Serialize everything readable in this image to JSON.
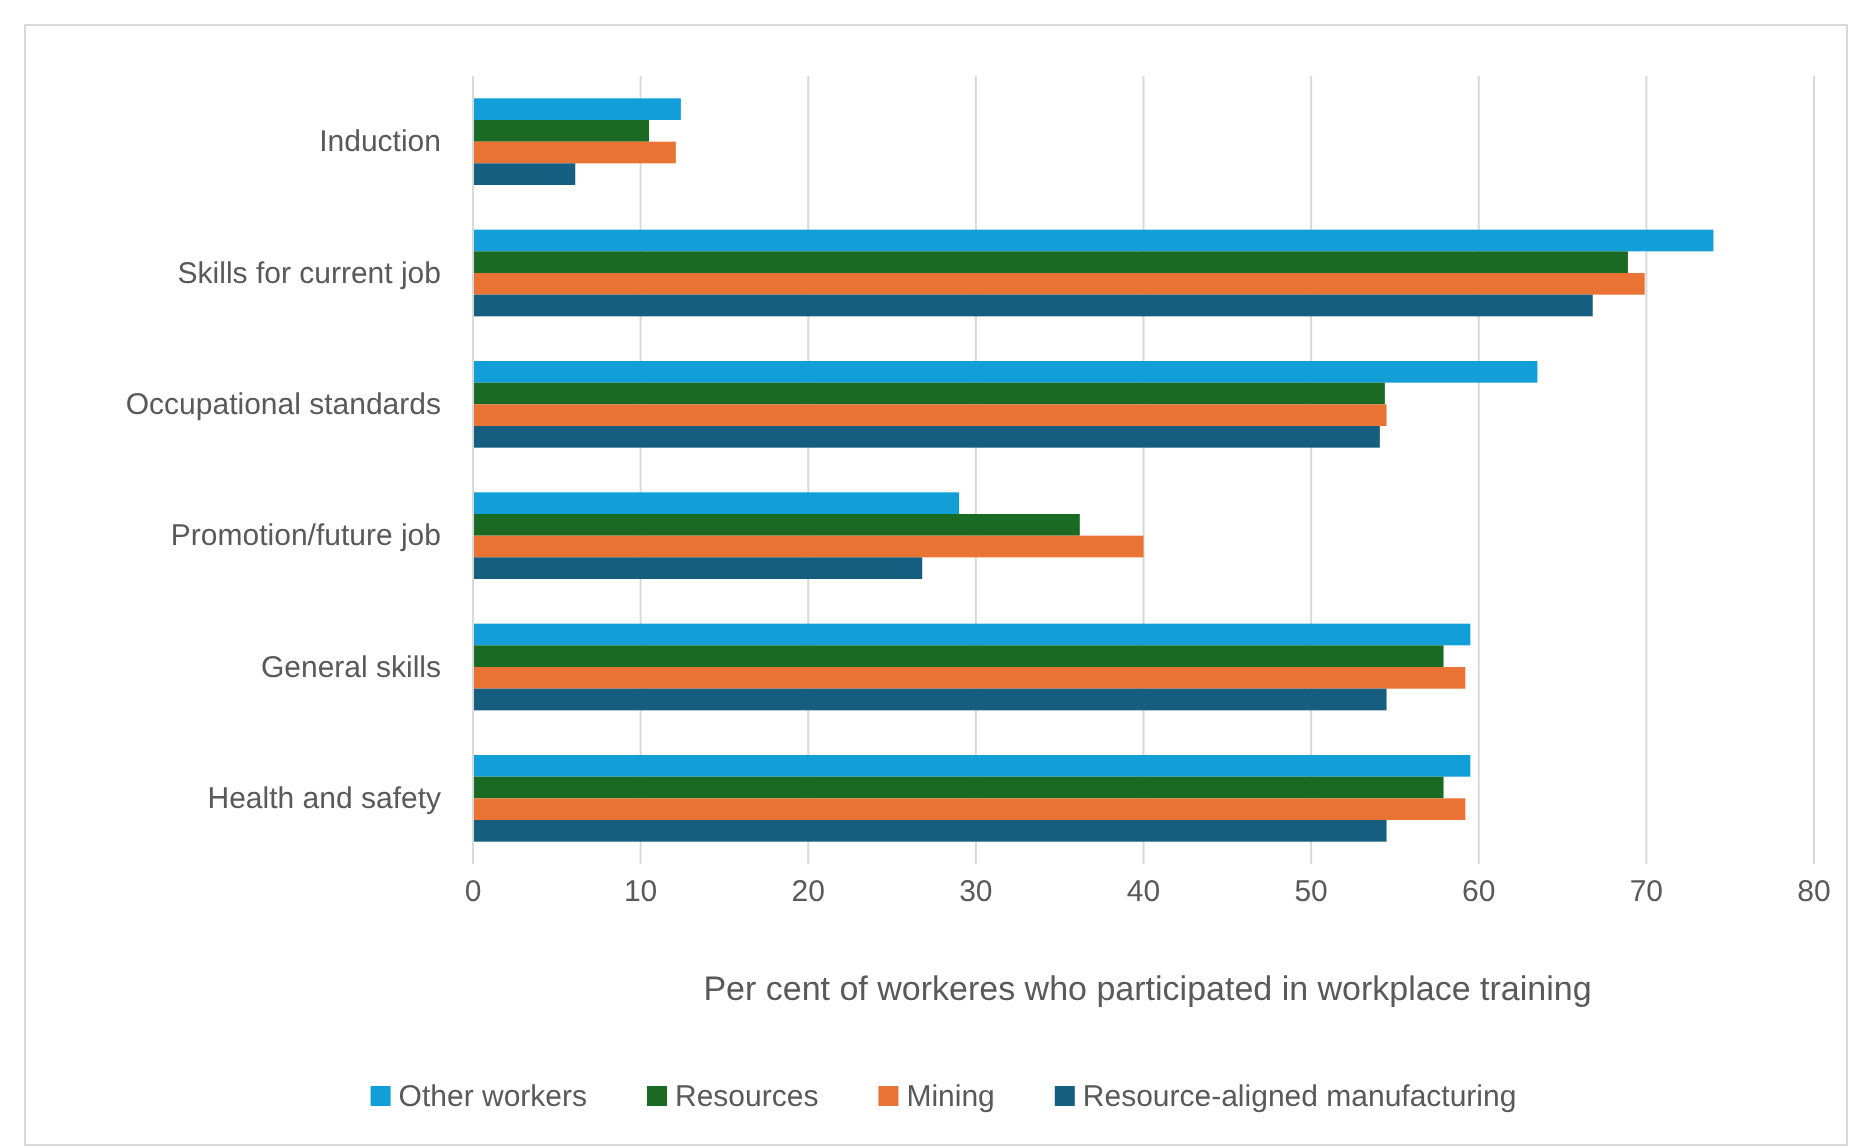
{
  "chart_data": {
    "type": "bar",
    "orientation": "horizontal",
    "xlabel": "Per cent of workeres who participated in workplace training",
    "categories": [
      "Induction",
      "Skills for current job",
      "Occupational standards",
      "Promotion/future job",
      "General skills",
      "Health and safety"
    ],
    "series": [
      {
        "name": "Other workers",
        "color": "#129fd8",
        "values": [
          12.4,
          74.0,
          63.5,
          29.0,
          59.5,
          59.5
        ]
      },
      {
        "name": "Resources",
        "color": "#1b6a23",
        "values": [
          10.5,
          68.9,
          54.4,
          36.2,
          57.9,
          57.9
        ]
      },
      {
        "name": "Mining",
        "color": "#e97334",
        "values": [
          12.1,
          69.9,
          54.5,
          40.0,
          59.2,
          59.2
        ]
      },
      {
        "name": "Resource-aligned manufacturing",
        "color": "#165e80",
        "values": [
          6.1,
          66.8,
          54.1,
          26.8,
          54.5,
          54.5
        ]
      }
    ],
    "xlim": [
      0,
      80
    ],
    "xticks": [
      0,
      10,
      20,
      30,
      40,
      50,
      60,
      70,
      80
    ],
    "grid": "x",
    "legend": "bottom"
  }
}
